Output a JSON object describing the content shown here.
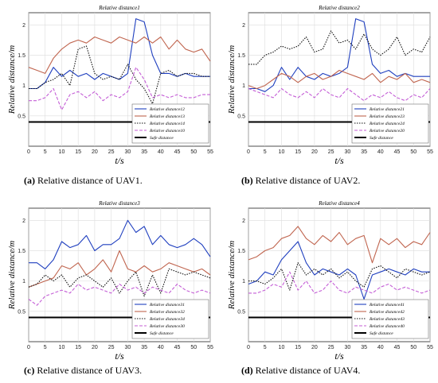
{
  "figure": {
    "panels": [
      {
        "caption_letter": "(a)",
        "caption_text": " Relative distance of UAV1.",
        "chart_data": {
          "type": "line",
          "title": "Relative   distance1",
          "xlabel": "t/s",
          "ylabel": "Relative   distance/m",
          "xlim": [
            0,
            55
          ],
          "ylim": [
            0,
            2.2
          ],
          "xticks": [
            0,
            5,
            10,
            15,
            20,
            25,
            30,
            35,
            40,
            45,
            50,
            55
          ],
          "yticks": [
            0.5,
            1,
            1.5,
            2
          ],
          "grid": true,
          "legend_position": "bottom-right",
          "x": [
            0,
            2.5,
            5,
            7.5,
            10,
            12.5,
            15,
            17.5,
            20,
            22.5,
            25,
            27.5,
            30,
            32.5,
            35,
            37.5,
            40,
            42.5,
            45,
            47.5,
            50,
            52.5,
            55
          ],
          "series": [
            {
              "name": "Relative   distance12",
              "color": "#1f3fbf",
              "dash": "solid",
              "values": [
                0.95,
                0.95,
                1.05,
                1.3,
                1.15,
                1.25,
                1.15,
                1.2,
                1.1,
                1.2,
                1.15,
                1.1,
                1.2,
                2.1,
                2.05,
                1.5,
                1.2,
                1.2,
                1.15,
                1.2,
                1.15,
                1.15,
                1.15
              ]
            },
            {
              "name": "Relative   distance13",
              "color": "#c0654f",
              "dash": "solid",
              "values": [
                1.3,
                1.25,
                1.2,
                1.45,
                1.6,
                1.7,
                1.75,
                1.7,
                1.8,
                1.75,
                1.7,
                1.8,
                1.75,
                1.7,
                1.8,
                1.7,
                1.8,
                1.6,
                1.75,
                1.6,
                1.55,
                1.6,
                1.4
              ]
            },
            {
              "name": "Relative   distance14",
              "color": "#111111",
              "dash": "dotted",
              "values": [
                0.95,
                0.95,
                1.05,
                1.1,
                1.2,
                1.0,
                1.6,
                1.65,
                1.2,
                1.1,
                1.15,
                1.1,
                1.35,
                1.1,
                0.95,
                0.7,
                1.2,
                1.25,
                1.15,
                1.2,
                1.2,
                1.15,
                1.15
              ]
            },
            {
              "name": "Relative   distance10",
              "color": "#c45ed6",
              "dash": "dashed",
              "values": [
                0.75,
                0.75,
                0.8,
                0.95,
                0.6,
                0.85,
                0.9,
                0.8,
                0.9,
                0.75,
                0.85,
                0.8,
                0.9,
                1.3,
                1.1,
                0.8,
                0.85,
                0.8,
                0.85,
                0.8,
                0.8,
                0.85,
                0.85
              ]
            },
            {
              "name": "Safe   distance",
              "color": "#000000",
              "dash": "solid",
              "width": 2,
              "values": [
                0.4,
                0.4,
                0.4,
                0.4,
                0.4,
                0.4,
                0.4,
                0.4,
                0.4,
                0.4,
                0.4,
                0.4,
                0.4,
                0.4,
                0.4,
                0.4,
                0.4,
                0.4,
                0.4,
                0.4,
                0.4,
                0.4,
                0.4
              ]
            }
          ]
        }
      },
      {
        "caption_letter": "(b)",
        "caption_text": " Relative distance of UAV2.",
        "chart_data": {
          "type": "line",
          "title": "Relative   distance2",
          "xlabel": "t/s",
          "ylabel": "Relative   distance/m",
          "xlim": [
            0,
            55
          ],
          "ylim": [
            0,
            2.2
          ],
          "xticks": [
            0,
            5,
            10,
            15,
            20,
            25,
            30,
            35,
            40,
            45,
            50,
            55
          ],
          "yticks": [
            0.5,
            1,
            1.5,
            2
          ],
          "grid": true,
          "legend_position": "bottom-right",
          "x": [
            0,
            2.5,
            5,
            7.5,
            10,
            12.5,
            15,
            17.5,
            20,
            22.5,
            25,
            27.5,
            30,
            32.5,
            35,
            37.5,
            40,
            42.5,
            45,
            47.5,
            50,
            52.5,
            55
          ],
          "series": [
            {
              "name": "Relative   distance21",
              "color": "#1f3fbf",
              "dash": "solid",
              "values": [
                0.95,
                0.95,
                0.9,
                1.0,
                1.3,
                1.1,
                1.3,
                1.15,
                1.1,
                1.2,
                1.15,
                1.2,
                1.3,
                2.1,
                2.05,
                1.35,
                1.2,
                1.25,
                1.15,
                1.2,
                1.15,
                1.15,
                1.15
              ]
            },
            {
              "name": "Relative   distance23",
              "color": "#c0654f",
              "dash": "solid",
              "values": [
                1.0,
                0.95,
                1.0,
                1.1,
                1.2,
                1.15,
                1.05,
                1.15,
                1.2,
                1.1,
                1.15,
                1.25,
                1.2,
                1.15,
                1.1,
                1.2,
                1.05,
                1.15,
                1.1,
                1.2,
                1.05,
                1.1,
                1.05
              ]
            },
            {
              "name": "Relative   distance24",
              "color": "#111111",
              "dash": "dotted",
              "values": [
                1.35,
                1.35,
                1.5,
                1.55,
                1.65,
                1.6,
                1.65,
                1.8,
                1.55,
                1.6,
                1.9,
                1.7,
                1.75,
                1.6,
                1.85,
                1.6,
                1.5,
                1.6,
                1.8,
                1.5,
                1.6,
                1.55,
                1.8
              ]
            },
            {
              "name": "Relative   distance20",
              "color": "#c45ed6",
              "dash": "dashed",
              "values": [
                0.95,
                0.9,
                0.85,
                0.8,
                0.95,
                0.85,
                0.8,
                0.9,
                0.8,
                0.95,
                0.85,
                0.8,
                0.95,
                0.85,
                0.75,
                0.85,
                0.8,
                0.9,
                0.8,
                0.75,
                0.85,
                0.8,
                0.95
              ]
            },
            {
              "name": "Safe   distance",
              "color": "#000000",
              "dash": "solid",
              "width": 2,
              "values": [
                0.4,
                0.4,
                0.4,
                0.4,
                0.4,
                0.4,
                0.4,
                0.4,
                0.4,
                0.4,
                0.4,
                0.4,
                0.4,
                0.4,
                0.4,
                0.4,
                0.4,
                0.4,
                0.4,
                0.4,
                0.4,
                0.4,
                0.4
              ]
            }
          ]
        }
      },
      {
        "caption_letter": "(c)",
        "caption_text": " Relative distance of UAV3.",
        "chart_data": {
          "type": "line",
          "title": "Relative   distance3",
          "xlabel": "t/s",
          "ylabel": "Relative   distance/m",
          "xlim": [
            0,
            55
          ],
          "ylim": [
            0,
            2.2
          ],
          "xticks": [
            0,
            5,
            10,
            15,
            20,
            25,
            30,
            35,
            40,
            45,
            50,
            55
          ],
          "yticks": [
            0.5,
            1,
            1.5,
            2
          ],
          "grid": true,
          "legend_position": "bottom-right",
          "x": [
            0,
            2.5,
            5,
            7.5,
            10,
            12.5,
            15,
            17.5,
            20,
            22.5,
            25,
            27.5,
            30,
            32.5,
            35,
            37.5,
            40,
            42.5,
            45,
            47.5,
            50,
            52.5,
            55
          ],
          "series": [
            {
              "name": "Relative   distance31",
              "color": "#1f3fbf",
              "dash": "solid",
              "values": [
                1.3,
                1.3,
                1.2,
                1.35,
                1.65,
                1.55,
                1.6,
                1.75,
                1.5,
                1.6,
                1.6,
                1.7,
                2.0,
                1.8,
                1.9,
                1.6,
                1.75,
                1.6,
                1.55,
                1.6,
                1.7,
                1.6,
                1.4
              ]
            },
            {
              "name": "Relative   distance32",
              "color": "#c0654f",
              "dash": "solid",
              "values": [
                0.9,
                0.95,
                1.0,
                1.05,
                1.25,
                1.2,
                1.3,
                1.1,
                1.2,
                1.35,
                1.15,
                1.5,
                1.2,
                1.15,
                1.25,
                1.15,
                1.2,
                1.3,
                1.25,
                1.2,
                1.15,
                1.2,
                1.1
              ]
            },
            {
              "name": "Relative   distance34",
              "color": "#111111",
              "dash": "dotted",
              "values": [
                0.9,
                0.95,
                1.1,
                1.0,
                1.1,
                0.9,
                1.05,
                1.1,
                1.0,
                0.9,
                1.05,
                0.8,
                1.0,
                1.15,
                0.75,
                1.1,
                0.8,
                1.2,
                1.15,
                1.1,
                1.15,
                1.1,
                1.05
              ]
            },
            {
              "name": "Relative   distance30",
              "color": "#c45ed6",
              "dash": "dashed",
              "values": [
                0.7,
                0.6,
                0.75,
                0.8,
                0.85,
                0.8,
                0.95,
                0.85,
                0.9,
                0.85,
                0.8,
                0.95,
                0.85,
                0.9,
                0.8,
                0.9,
                0.85,
                0.8,
                0.95,
                0.85,
                0.8,
                0.85,
                0.8
              ]
            },
            {
              "name": "Safe   distance",
              "color": "#000000",
              "dash": "solid",
              "width": 2,
              "values": [
                0.4,
                0.4,
                0.4,
                0.4,
                0.4,
                0.4,
                0.4,
                0.4,
                0.4,
                0.4,
                0.4,
                0.4,
                0.4,
                0.4,
                0.4,
                0.4,
                0.4,
                0.4,
                0.4,
                0.4,
                0.4,
                0.4,
                0.4
              ]
            }
          ]
        }
      },
      {
        "caption_letter": "(d)",
        "caption_text": " Relative distance of UAV4.",
        "chart_data": {
          "type": "line",
          "title": "Relative   distance4",
          "xlabel": "t/s",
          "ylabel": "Relative   distance/m",
          "xlim": [
            0,
            55
          ],
          "ylim": [
            0,
            2.2
          ],
          "xticks": [
            0,
            5,
            10,
            15,
            20,
            25,
            30,
            35,
            40,
            45,
            50,
            55
          ],
          "yticks": [
            0.5,
            1,
            1.5,
            2
          ],
          "grid": true,
          "legend_position": "bottom-right",
          "x": [
            0,
            2.5,
            5,
            7.5,
            10,
            12.5,
            15,
            17.5,
            20,
            22.5,
            25,
            27.5,
            30,
            32.5,
            35,
            37.5,
            40,
            42.5,
            45,
            47.5,
            50,
            52.5,
            55
          ],
          "series": [
            {
              "name": "Relative   distance41",
              "color": "#1f3fbf",
              "dash": "solid",
              "values": [
                0.95,
                1.0,
                1.15,
                1.1,
                1.35,
                1.5,
                1.65,
                1.3,
                1.1,
                1.2,
                1.15,
                1.1,
                1.2,
                1.1,
                0.7,
                1.1,
                1.15,
                1.2,
                1.15,
                1.1,
                1.2,
                1.15,
                1.15
              ]
            },
            {
              "name": "Relative   distance42",
              "color": "#c0654f",
              "dash": "solid",
              "values": [
                1.35,
                1.4,
                1.5,
                1.55,
                1.7,
                1.75,
                1.9,
                1.7,
                1.6,
                1.75,
                1.65,
                1.8,
                1.6,
                1.7,
                1.75,
                1.3,
                1.7,
                1.6,
                1.7,
                1.55,
                1.65,
                1.6,
                1.8
              ]
            },
            {
              "name": "Relative   distance43",
              "color": "#111111",
              "dash": "dotted",
              "values": [
                1.0,
                1.0,
                0.95,
                1.05,
                1.2,
                0.85,
                1.3,
                1.1,
                1.2,
                1.1,
                1.2,
                1.05,
                1.15,
                1.0,
                0.9,
                1.2,
                1.25,
                1.15,
                1.05,
                1.2,
                1.15,
                1.1,
                1.15
              ]
            },
            {
              "name": "Relative   distance40",
              "color": "#c45ed6",
              "dash": "dashed",
              "values": [
                0.8,
                0.8,
                0.85,
                0.95,
                0.9,
                1.15,
                0.85,
                1.0,
                0.8,
                0.85,
                1.0,
                0.85,
                0.8,
                0.9,
                0.85,
                0.8,
                0.9,
                0.95,
                0.85,
                0.9,
                0.85,
                0.8,
                0.85
              ]
            },
            {
              "name": "Safe   distance",
              "color": "#000000",
              "dash": "solid",
              "width": 2,
              "values": [
                0.4,
                0.4,
                0.4,
                0.4,
                0.4,
                0.4,
                0.4,
                0.4,
                0.4,
                0.4,
                0.4,
                0.4,
                0.4,
                0.4,
                0.4,
                0.4,
                0.4,
                0.4,
                0.4,
                0.4,
                0.4,
                0.4,
                0.4
              ]
            }
          ]
        }
      }
    ]
  }
}
